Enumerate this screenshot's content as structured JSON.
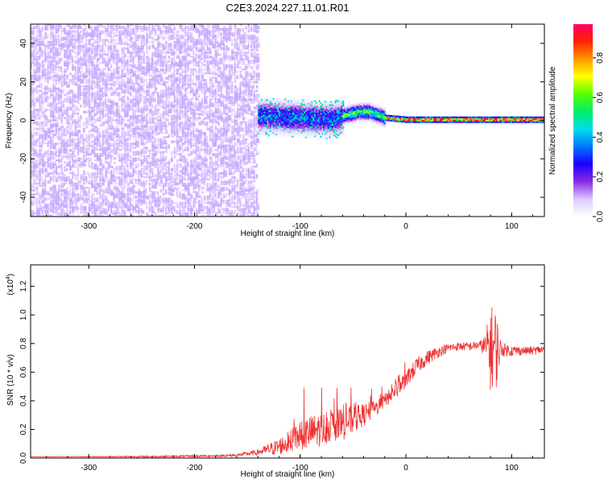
{
  "page_title": "C2E3.2024.227.11.01.R01",
  "colors": {
    "snr_line": "#ee3333",
    "spectrogram_noise": "#7a2cff",
    "colorbar_stops": [
      "#ffffff",
      "#dcc8ff",
      "#8a2be2",
      "#1a00ff",
      "#0077ff",
      "#00ddee",
      "#00ee66",
      "#55ff00",
      "#ffff00",
      "#ff9900",
      "#ff2200",
      "#ff0066"
    ]
  },
  "chart_data": [
    {
      "type": "heatmap",
      "title": "C2E3.2024.227.11.01.R01",
      "xlabel": "Height of straight line (km)",
      "ylabel": "Frequency (Hz)",
      "xlim": [
        -355,
        131
      ],
      "ylim": [
        -50,
        50
      ],
      "x_ticks": [
        -300,
        -200,
        -100,
        0,
        100
      ],
      "x_tick_labels": [
        "-300",
        "-200",
        "-100",
        "0",
        "100"
      ],
      "y_ticks": [
        -40,
        -20,
        0,
        20,
        40
      ],
      "y_tick_labels": [
        "-40",
        "-20",
        "0",
        "20",
        "40"
      ],
      "colorbar": {
        "label": "Normalized spectral amplitude",
        "range": [
          0.0,
          0.97
        ],
        "ticks": [
          0.0,
          0.2,
          0.4,
          0.6,
          0.8
        ],
        "tick_labels": [
          "0.0",
          "0.2",
          "0.4",
          "0.6",
          "0.8"
        ]
      },
      "regions": [
        {
          "x_range": [
            -355,
            -140
          ],
          "frequency_range": [
            -50,
            50
          ],
          "amplitude": 0.15,
          "description": "broadband noise"
        },
        {
          "x_range": [
            -140,
            -60
          ],
          "frequency_range": [
            -10,
            10
          ],
          "amplitude": 0.35
        },
        {
          "x_range": [
            -60,
            -20
          ],
          "frequency_range": [
            -2,
            8
          ],
          "amplitude": 0.6
        },
        {
          "x_range": [
            -20,
            131
          ],
          "frequency_range": [
            -2,
            2
          ],
          "amplitude": 0.97
        }
      ],
      "center_frequency": {
        "x": [
          -140,
          -100,
          -70,
          -60,
          -45,
          -35,
          -20,
          0,
          50,
          100,
          131
        ],
        "y": [
          2,
          1,
          0,
          2,
          4,
          4,
          1,
          0,
          0,
          0,
          0
        ]
      }
    },
    {
      "type": "line",
      "xlabel": "Height of straight line (km)",
      "ylabel": "SNR (10 * v/v)",
      "y_scale_label": "(x10",
      "y_scale_exponent": "4",
      "xlim": [
        -355,
        131
      ],
      "ylim": [
        0,
        1.35
      ],
      "x_ticks": [
        -300,
        -200,
        -100,
        0,
        100
      ],
      "x_tick_labels": [
        "-300",
        "-200",
        "-100",
        "0",
        "100"
      ],
      "y_ticks": [
        0.0,
        0.2,
        0.4,
        0.6,
        0.8,
        1.0,
        1.2
      ],
      "y_tick_labels": [
        "0.0",
        "0.2",
        "0.4",
        "0.6",
        "0.8",
        "1.0",
        "1.2"
      ],
      "series": [
        {
          "x": [
            -355,
            -250,
            -180,
            -160,
            -140,
            -120,
            -100,
            -90,
            -80,
            -70,
            -60,
            -50,
            -40,
            -30,
            -20,
            -10,
            0,
            10,
            20,
            30,
            40,
            50,
            60,
            70,
            75,
            80,
            85,
            90,
            100,
            110,
            120,
            131
          ],
          "y": [
            0.01,
            0.01,
            0.015,
            0.02,
            0.04,
            0.08,
            0.15,
            0.18,
            0.2,
            0.22,
            0.24,
            0.27,
            0.3,
            0.34,
            0.4,
            0.47,
            0.55,
            0.64,
            0.7,
            0.74,
            0.77,
            0.78,
            0.78,
            0.79,
            0.78,
            0.77,
            0.76,
            0.76,
            0.75,
            0.75,
            0.75,
            0.76
          ],
          "noise": [
            0.0,
            0.005,
            0.008,
            0.01,
            0.02,
            0.06,
            0.1,
            0.12,
            0.12,
            0.1,
            0.12,
            0.1,
            0.08,
            0.06,
            0.05,
            0.06,
            0.06,
            0.06,
            0.05,
            0.04,
            0.03,
            0.03,
            0.03,
            0.03,
            0.08,
            0.3,
            0.3,
            0.05,
            0.04,
            0.03,
            0.03,
            0.03
          ]
        }
      ]
    }
  ]
}
